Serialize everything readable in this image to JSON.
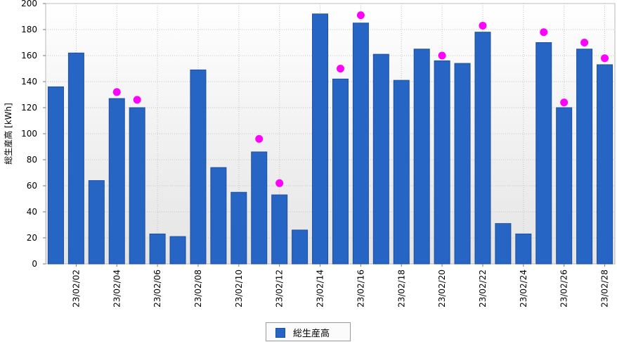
{
  "chart_data": {
    "type": "bar",
    "title": "",
    "xlabel": "",
    "ylabel": "総生産高 [kWh]",
    "ylim": [
      0,
      200
    ],
    "yticks": [
      0,
      20,
      40,
      60,
      80,
      100,
      120,
      140,
      160,
      180,
      200
    ],
    "grid": true,
    "legend_position": "bottom",
    "categories": [
      "23/02/01",
      "23/02/02",
      "23/02/03",
      "23/02/04",
      "23/02/05",
      "23/02/06",
      "23/02/07",
      "23/02/08",
      "23/02/09",
      "23/02/10",
      "23/02/11",
      "23/02/12",
      "23/02/13",
      "23/02/14",
      "23/02/15",
      "23/02/16",
      "23/02/17",
      "23/02/18",
      "23/02/19",
      "23/02/20",
      "23/02/21",
      "23/02/22",
      "23/02/23",
      "23/02/24",
      "23/02/25",
      "23/02/26",
      "23/02/27",
      "23/02/28"
    ],
    "x_tick_labels_shown": [
      "23/02/02",
      "23/02/04",
      "23/02/06",
      "23/02/08",
      "23/02/10",
      "23/02/12",
      "23/02/14",
      "23/02/16",
      "23/02/18",
      "23/02/20",
      "23/02/22",
      "23/02/24",
      "23/02/26",
      "23/02/28"
    ],
    "series": [
      {
        "name": "総生産高",
        "color": "#2765c4",
        "values": [
          136,
          162,
          64,
          127,
          120,
          23,
          21,
          149,
          74,
          55,
          86,
          53,
          26,
          192,
          142,
          185,
          161,
          141,
          165,
          156,
          154,
          178,
          31,
          23,
          170,
          120,
          165,
          153
        ]
      }
    ],
    "markers": {
      "color": "#ff00ff",
      "points": [
        {
          "x": "23/02/04",
          "y": 132
        },
        {
          "x": "23/02/05",
          "y": 126
        },
        {
          "x": "23/02/11",
          "y": 96
        },
        {
          "x": "23/02/12",
          "y": 62
        },
        {
          "x": "23/02/15",
          "y": 150
        },
        {
          "x": "23/02/16",
          "y": 191
        },
        {
          "x": "23/02/20",
          "y": 160
        },
        {
          "x": "23/02/22",
          "y": 183
        },
        {
          "x": "23/02/25",
          "y": 178
        },
        {
          "x": "23/02/26",
          "y": 124
        },
        {
          "x": "23/02/27",
          "y": 170
        },
        {
          "x": "23/02/28",
          "y": 158
        }
      ]
    }
  }
}
